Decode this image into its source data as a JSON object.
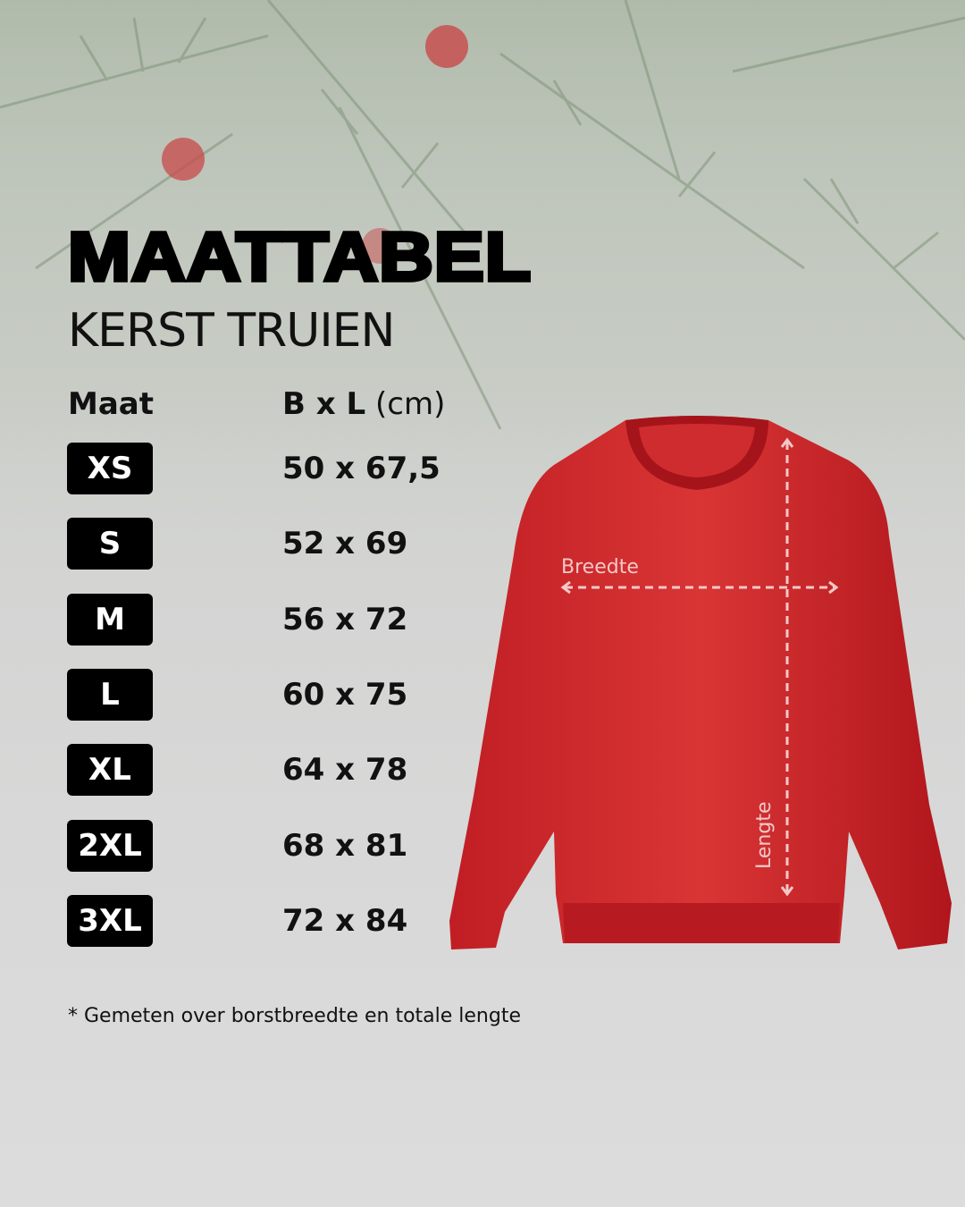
{
  "title": "MAATTABEL",
  "subtitle": "KERST TRUIEN",
  "table": {
    "headers": {
      "size": "Maat",
      "dims_bold": "B x L",
      "dims_unit": "(cm)"
    },
    "rows": [
      {
        "size": "XS",
        "dims": "50 x 67,5"
      },
      {
        "size": "S",
        "dims": "52 x 69"
      },
      {
        "size": "M",
        "dims": "56 x 72"
      },
      {
        "size": "L",
        "dims": "60 x 75"
      },
      {
        "size": "XL",
        "dims": "64 x 78"
      },
      {
        "size": "2XL",
        "dims": "68 x 81"
      },
      {
        "size": "3XL",
        "dims": "72 x 84"
      }
    ]
  },
  "diagram": {
    "width_label": "Breedte",
    "length_label": "Lengte",
    "sweater_color": "#d42a2a"
  },
  "footnote": "* Gemeten over borstbreedte en totale lengte"
}
